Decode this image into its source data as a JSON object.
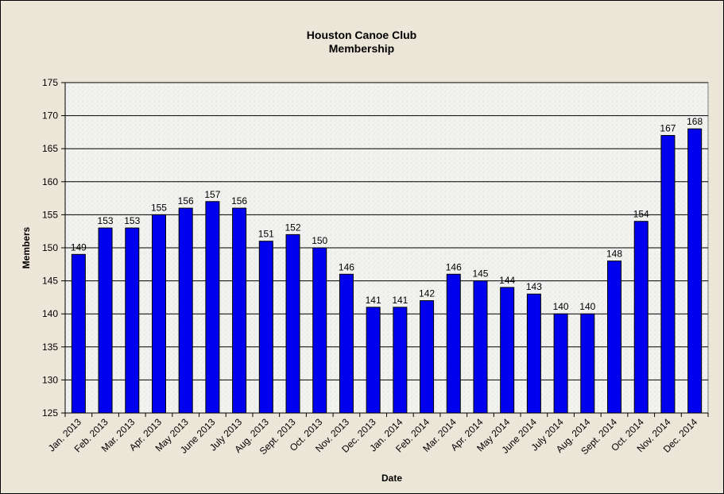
{
  "chart_data": {
    "type": "bar",
    "title": "Houston Canoe Club",
    "subtitle": "Membership",
    "xlabel": "Date",
    "ylabel": "Members",
    "ylim": [
      125,
      175
    ],
    "yticks": [
      125,
      130,
      135,
      140,
      145,
      150,
      155,
      160,
      165,
      170,
      175
    ],
    "grid": true,
    "legend": "none",
    "bar_color": "#0000ee",
    "categories": [
      "Jan. 2013",
      "Feb. 2013",
      "Mar. 2013",
      "Apr. 2013",
      "May 2013",
      "June 2013",
      "July 2013",
      "Aug. 2013",
      "Sept. 2013",
      "Oct. 2013",
      "Nov. 2013",
      "Dec. 2013",
      "Jan. 2014",
      "Feb. 2014",
      "Mar. 2014",
      "Apr. 2014",
      "May 2014",
      "June 2014",
      "July 2014",
      "Aug. 2014",
      "Sept. 2014",
      "Oct. 2014",
      "Nov. 2014",
      "Dec. 2014"
    ],
    "values": [
      149,
      153,
      153,
      155,
      156,
      157,
      156,
      151,
      152,
      150,
      146,
      141,
      141,
      142,
      146,
      145,
      144,
      143,
      140,
      140,
      148,
      154,
      167,
      168
    ]
  }
}
